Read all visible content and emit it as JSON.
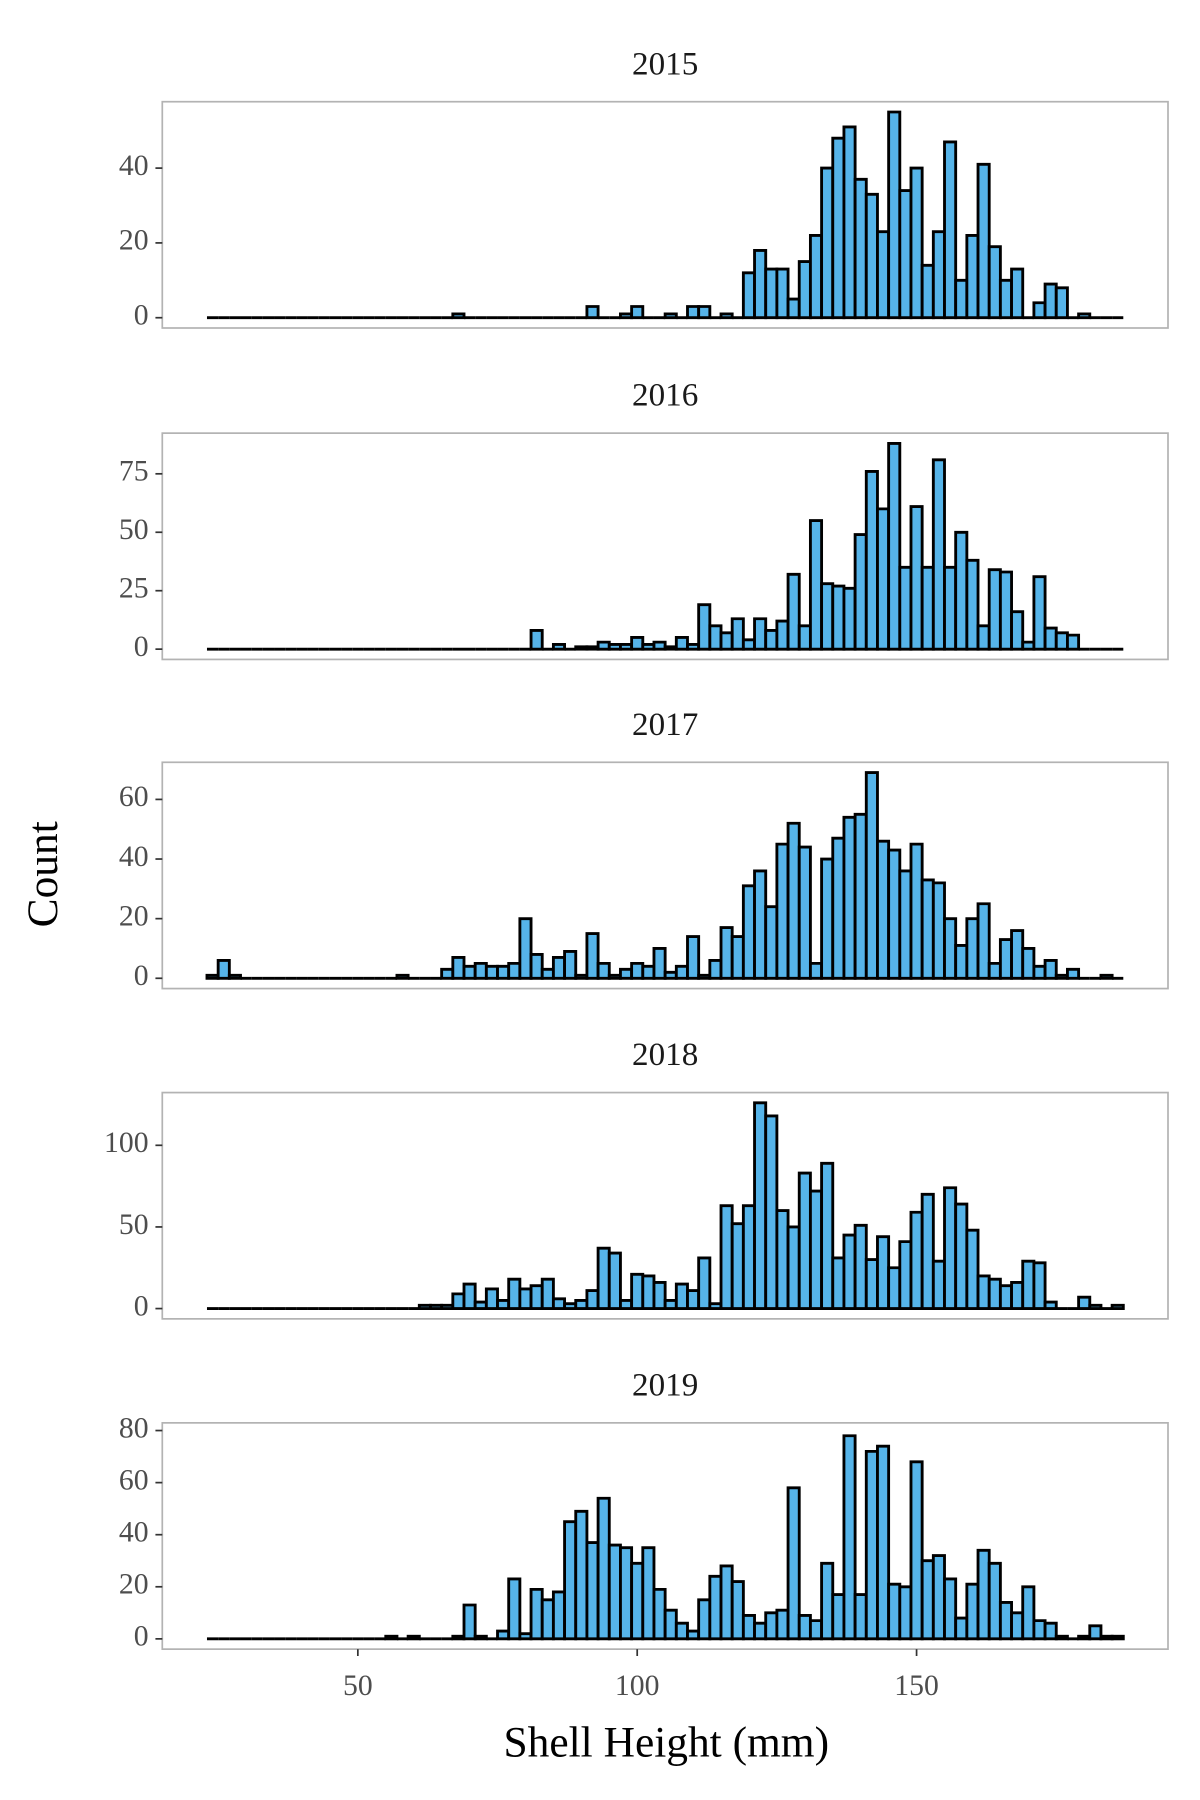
{
  "axis_titles": {
    "x": "Shell Height (mm)",
    "y": "Count"
  },
  "chart_data": [
    {
      "type": "histogram",
      "title": "2015",
      "color": "#56B4E9",
      "bins": [
        23,
        25,
        27,
        29,
        31,
        33,
        35,
        37,
        39,
        41,
        43,
        45,
        47,
        49,
        51,
        53,
        55,
        57,
        59,
        61,
        63,
        65,
        67,
        69,
        71,
        73,
        75,
        77,
        79,
        81,
        83,
        85,
        87,
        89,
        91,
        93,
        95,
        97,
        99,
        101,
        103,
        105,
        107,
        109,
        111,
        113,
        115,
        117,
        119,
        121,
        123,
        125,
        127,
        129,
        131,
        133,
        135,
        137,
        139,
        141,
        143,
        145,
        147,
        149,
        151,
        153,
        155,
        157,
        159,
        161,
        163,
        165,
        167,
        169,
        171,
        173,
        175,
        177,
        179,
        181,
        183,
        185,
        187
      ],
      "counts": [
        0,
        0,
        0,
        0,
        0,
        0,
        0,
        0,
        0,
        0,
        0,
        0,
        0,
        0,
        0,
        0,
        0,
        0,
        0,
        0,
        0,
        0,
        1,
        0,
        0,
        0,
        0,
        0,
        0,
        0,
        0,
        0,
        0,
        0,
        3,
        0,
        0,
        1,
        3,
        0,
        0,
        1,
        0,
        3,
        3,
        0,
        1,
        0,
        12,
        18,
        13,
        13,
        5,
        15,
        22,
        40,
        48,
        51,
        37,
        33,
        23,
        55,
        34,
        40,
        14,
        23,
        47,
        10,
        22,
        41,
        19,
        10,
        13,
        0,
        4,
        9,
        8,
        0,
        1,
        0,
        0,
        0
      ],
      "xlim": [
        15,
        195
      ],
      "ylim": [
        -2.75,
        57.75
      ],
      "yticks": [
        0,
        20,
        40
      ]
    },
    {
      "type": "histogram",
      "title": "2016",
      "color": "#56B4E9",
      "bins": [
        23,
        25,
        27,
        29,
        31,
        33,
        35,
        37,
        39,
        41,
        43,
        45,
        47,
        49,
        51,
        53,
        55,
        57,
        59,
        61,
        63,
        65,
        67,
        69,
        71,
        73,
        75,
        77,
        79,
        81,
        83,
        85,
        87,
        89,
        91,
        93,
        95,
        97,
        99,
        101,
        103,
        105,
        107,
        109,
        111,
        113,
        115,
        117,
        119,
        121,
        123,
        125,
        127,
        129,
        131,
        133,
        135,
        137,
        139,
        141,
        143,
        145,
        147,
        149,
        151,
        153,
        155,
        157,
        159,
        161,
        163,
        165,
        167,
        169,
        171,
        173,
        175,
        177,
        179,
        181,
        183,
        185,
        187
      ],
      "counts": [
        0,
        0,
        0,
        0,
        0,
        0,
        0,
        0,
        0,
        0,
        0,
        0,
        0,
        0,
        0,
        0,
        0,
        0,
        0,
        0,
        0,
        0,
        0,
        0,
        0,
        0,
        0,
        0,
        0,
        8,
        0,
        2,
        0,
        1,
        1,
        3,
        2,
        2,
        5,
        2,
        3,
        1,
        5,
        2,
        19,
        10,
        7,
        13,
        4,
        13,
        8,
        12,
        32,
        10,
        55,
        28,
        27,
        26,
        49,
        76,
        60,
        88,
        35,
        61,
        35,
        81,
        35,
        50,
        38,
        10,
        34,
        33,
        16,
        3,
        31,
        9,
        7,
        6,
        0,
        0,
        0,
        0
      ],
      "xlim": [
        15,
        195
      ],
      "ylim": [
        -4.4,
        92.4
      ],
      "yticks": [
        0,
        25,
        50,
        75
      ]
    },
    {
      "type": "histogram",
      "title": "2017",
      "color": "#56B4E9",
      "bins": [
        23,
        25,
        27,
        29,
        31,
        33,
        35,
        37,
        39,
        41,
        43,
        45,
        47,
        49,
        51,
        53,
        55,
        57,
        59,
        61,
        63,
        65,
        67,
        69,
        71,
        73,
        75,
        77,
        79,
        81,
        83,
        85,
        87,
        89,
        91,
        93,
        95,
        97,
        99,
        101,
        103,
        105,
        107,
        109,
        111,
        113,
        115,
        117,
        119,
        121,
        123,
        125,
        127,
        129,
        131,
        133,
        135,
        137,
        139,
        141,
        143,
        145,
        147,
        149,
        151,
        153,
        155,
        157,
        159,
        161,
        163,
        165,
        167,
        169,
        171,
        173,
        175,
        177,
        179,
        181,
        183,
        185,
        187
      ],
      "counts": [
        1,
        6,
        1,
        0,
        0,
        0,
        0,
        0,
        0,
        0,
        0,
        0,
        0,
        0,
        0,
        0,
        0,
        1,
        0,
        0,
        0,
        3,
        7,
        4,
        5,
        4,
        4,
        5,
        20,
        8,
        3,
        7,
        9,
        1,
        15,
        5,
        1,
        3,
        5,
        4,
        10,
        2,
        4,
        14,
        1,
        6,
        17,
        14,
        31,
        36,
        24,
        45,
        52,
        44,
        5,
        40,
        47,
        54,
        55,
        69,
        46,
        43,
        36,
        45,
        33,
        32,
        20,
        11,
        20,
        25,
        5,
        13,
        16,
        10,
        4,
        6,
        1,
        3,
        0,
        0,
        1,
        0
      ],
      "xlim": [
        15,
        195
      ],
      "ylim": [
        -3.45,
        72.45
      ],
      "yticks": [
        0,
        20,
        40,
        60
      ]
    },
    {
      "type": "histogram",
      "title": "2018",
      "color": "#56B4E9",
      "bins": [
        23,
        25,
        27,
        29,
        31,
        33,
        35,
        37,
        39,
        41,
        43,
        45,
        47,
        49,
        51,
        53,
        55,
        57,
        59,
        61,
        63,
        65,
        67,
        69,
        71,
        73,
        75,
        77,
        79,
        81,
        83,
        85,
        87,
        89,
        91,
        93,
        95,
        97,
        99,
        101,
        103,
        105,
        107,
        109,
        111,
        113,
        115,
        117,
        119,
        121,
        123,
        125,
        127,
        129,
        131,
        133,
        135,
        137,
        139,
        141,
        143,
        145,
        147,
        149,
        151,
        153,
        155,
        157,
        159,
        161,
        163,
        165,
        167,
        169,
        171,
        173,
        175,
        177,
        179,
        181,
        183,
        185,
        187
      ],
      "counts": [
        0,
        0,
        0,
        0,
        0,
        0,
        0,
        0,
        0,
        0,
        0,
        0,
        0,
        0,
        0,
        0,
        0,
        0,
        0,
        2,
        2,
        2,
        9,
        15,
        4,
        12,
        5,
        18,
        12,
        14,
        18,
        6,
        3,
        5,
        11,
        37,
        34,
        5,
        21,
        20,
        16,
        5,
        15,
        11,
        31,
        3,
        63,
        52,
        63,
        126,
        118,
        60,
        50,
        83,
        72,
        89,
        31,
        45,
        51,
        30,
        44,
        25,
        41,
        59,
        70,
        29,
        74,
        64,
        48,
        20,
        18,
        14,
        16,
        29,
        28,
        4,
        0,
        0,
        7,
        2,
        0,
        2
      ],
      "xlim": [
        15,
        195
      ],
      "ylim": [
        -6.3,
        132.3
      ],
      "yticks": [
        0,
        50,
        100
      ]
    },
    {
      "type": "histogram",
      "title": "2019",
      "color": "#56B4E9",
      "bins": [
        23,
        25,
        27,
        29,
        31,
        33,
        35,
        37,
        39,
        41,
        43,
        45,
        47,
        49,
        51,
        53,
        55,
        57,
        59,
        61,
        63,
        65,
        67,
        69,
        71,
        73,
        75,
        77,
        79,
        81,
        83,
        85,
        87,
        89,
        91,
        93,
        95,
        97,
        99,
        101,
        103,
        105,
        107,
        109,
        111,
        113,
        115,
        117,
        119,
        121,
        123,
        125,
        127,
        129,
        131,
        133,
        135,
        137,
        139,
        141,
        143,
        145,
        147,
        149,
        151,
        153,
        155,
        157,
        159,
        161,
        163,
        165,
        167,
        169,
        171,
        173,
        175,
        177,
        179,
        181,
        183,
        185,
        187
      ],
      "counts": [
        0,
        0,
        0,
        0,
        0,
        0,
        0,
        0,
        0,
        0,
        0,
        0,
        0,
        0,
        0,
        0,
        1,
        0,
        1,
        0,
        0,
        0,
        1,
        13,
        1,
        0,
        3,
        23,
        2,
        19,
        15,
        18,
        45,
        49,
        37,
        54,
        36,
        35,
        29,
        35,
        19,
        11,
        6,
        3,
        15,
        24,
        28,
        22,
        9,
        6,
        10,
        11,
        58,
        9,
        7,
        29,
        17,
        78,
        17,
        72,
        74,
        21,
        20,
        68,
        30,
        32,
        23,
        8,
        21,
        34,
        29,
        14,
        10,
        20,
        7,
        6,
        1,
        0,
        1,
        5,
        1,
        1
      ],
      "xlim": [
        15,
        195
      ],
      "ylim": [
        -3.95,
        82.95
      ],
      "yticks": [
        0,
        20,
        40,
        60,
        80
      ],
      "xticks": [
        50,
        100,
        150
      ]
    }
  ]
}
